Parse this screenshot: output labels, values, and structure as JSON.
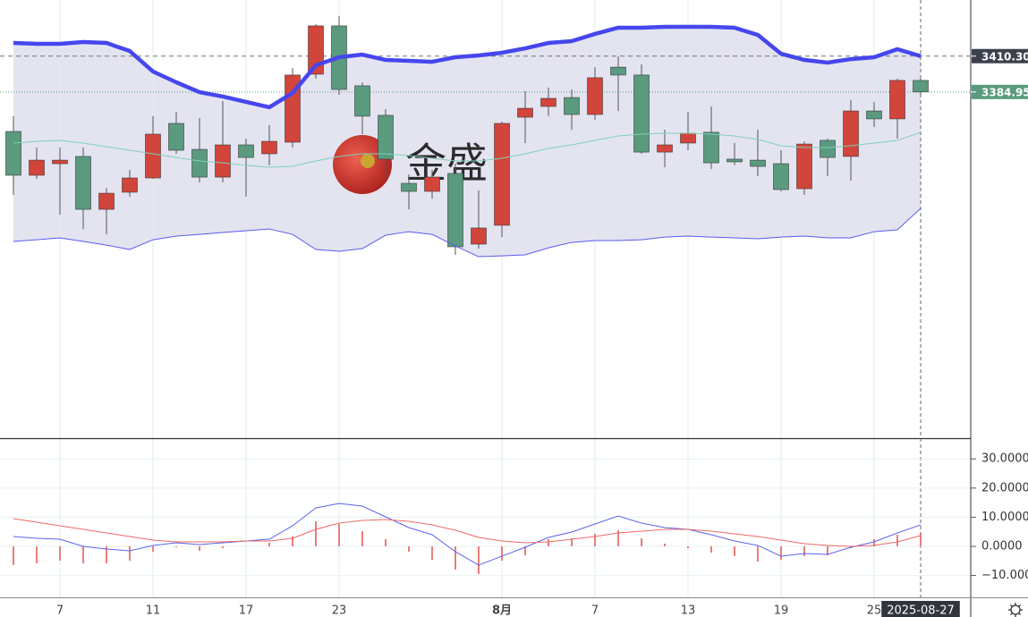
{
  "chart_data": [
    {
      "type": "candlestick",
      "categories": [
        null,
        null,
        "7",
        null,
        null,
        null,
        "11",
        null,
        null,
        null,
        "17",
        null,
        null,
        null,
        "23",
        null,
        null,
        null,
        null,
        null,
        null,
        "8月",
        null,
        null,
        null,
        "7",
        null,
        null,
        null,
        "13",
        null,
        null,
        null,
        "19",
        null,
        null,
        null,
        "25",
        null,
        "2025-08-27"
      ],
      "open": [
        3357.0,
        3326.0,
        3334.2,
        3339.3,
        3301.9,
        3314.0,
        3324.1,
        3362.7,
        3344.3,
        3324.7,
        3347.5,
        3341.2,
        3349.4,
        3397.5,
        3431.7,
        3389.3,
        3368.4,
        3320.3,
        3314.6,
        3327.3,
        3277.3,
        3290.6,
        3367.1,
        3374.7,
        3381.0,
        3369.0,
        3402.5,
        3396.9,
        3342.4,
        3348.8,
        3356.4,
        3337.4,
        3336.7,
        3334.2,
        3316.5,
        3350.7,
        3339.3,
        3371.5,
        3365.9,
        3393.1
      ],
      "high": [
        3367.8,
        3345.6,
        3345.6,
        3345.6,
        3317.1,
        3329.8,
        3367.8,
        3370.9,
        3366.5,
        3378.5,
        3351.9,
        3361.4,
        3401.9,
        3432.9,
        3438.6,
        3391.8,
        3372.8,
        3326.6,
        3329.8,
        3334.2,
        3315.2,
        3364.0,
        3385.5,
        3388.0,
        3386.7,
        3402.5,
        3410.1,
        3404.4,
        3358.3,
        3370.9,
        3374.7,
        3348.8,
        3358.3,
        3343.7,
        3350.0,
        3351.9,
        3379.1,
        3377.9,
        3394.3,
        3394.3
      ],
      "low": [
        3312.1,
        3323.5,
        3298.2,
        3288.0,
        3284.2,
        3310.8,
        3323.5,
        3341.2,
        3320.9,
        3320.9,
        3310.8,
        3333.0,
        3345.6,
        3394.3,
        3382.9,
        3355.1,
        3323.5,
        3301.9,
        3309.5,
        3269.7,
        3274.1,
        3282.3,
        3348.8,
        3367.8,
        3358.3,
        3365.2,
        3371.5,
        3341.2,
        3331.7,
        3343.7,
        3330.4,
        3333.0,
        3325.4,
        3314.6,
        3312.1,
        3325.4,
        3322.2,
        3360.2,
        3351.9,
        3383.5
      ],
      "close": [
        3326.0,
        3336.7,
        3336.7,
        3301.9,
        3313.3,
        3324.1,
        3355.1,
        3343.7,
        3324.7,
        3347.5,
        3338.6,
        3350.0,
        3396.9,
        3431.7,
        3386.7,
        3367.8,
        3337.4,
        3314.6,
        3324.7,
        3275.4,
        3288.7,
        3362.7,
        3373.4,
        3380.4,
        3369.0,
        3395.0,
        3396.9,
        3342.4,
        3347.5,
        3355.7,
        3334.8,
        3335.5,
        3332.3,
        3315.9,
        3348.1,
        3338.6,
        3371.5,
        3365.9,
        3393.1,
        3384.95
      ],
      "up_color": "#d2453b",
      "down_color": "#5a9a7f",
      "wick_color": "#555555",
      "overlays": [
        {
          "color": "#4646ee",
          "width": 4.5,
          "values": [
            3419.6,
            3419.0,
            3419.0,
            3420.3,
            3419.6,
            3413.9,
            3399.4,
            3391.8,
            3384.8,
            3381.7,
            3377.9,
            3374.1,
            3384.2,
            3403.8,
            3409.5,
            3411.4,
            3407.6,
            3407.0,
            3406.3,
            3409.5,
            3410.8,
            3412.7,
            3415.8,
            3419.6,
            3420.9,
            3426.0,
            3430.4,
            3430.4,
            3431.0,
            3431.0,
            3431.0,
            3430.4,
            3425.3,
            3412.0,
            3407.6,
            3405.7,
            3408.2,
            3409.5,
            3415.2,
            3410.3
          ]
        },
        {
          "color": "#7fd0b8",
          "width": 1,
          "values": [
            3348.8,
            3350.0,
            3350.7,
            3348.8,
            3346.2,
            3343.7,
            3341.2,
            3338.6,
            3336.1,
            3334.8,
            3333.0,
            3331.7,
            3332.3,
            3336.1,
            3339.3,
            3341.2,
            3341.2,
            3339.9,
            3338.0,
            3336.1,
            3336.1,
            3338.0,
            3341.2,
            3345.0,
            3347.5,
            3350.7,
            3353.8,
            3355.1,
            3355.7,
            3355.7,
            3355.1,
            3353.8,
            3351.3,
            3346.9,
            3345.6,
            3345.6,
            3346.9,
            3348.8,
            3350.7,
            3356.4
          ]
        },
        {
          "color": "#5a5aee",
          "width": 1,
          "values": [
            3279.2,
            3280.4,
            3281.7,
            3279.2,
            3276.6,
            3273.5,
            3280.4,
            3283.0,
            3284.2,
            3285.5,
            3286.8,
            3288.0,
            3284.2,
            3273.5,
            3272.2,
            3274.1,
            3283.6,
            3286.1,
            3284.2,
            3276.0,
            3268.4,
            3269.0,
            3269.7,
            3274.7,
            3278.5,
            3279.8,
            3279.8,
            3280.4,
            3282.3,
            3283.0,
            3282.3,
            3281.7,
            3281.1,
            3282.3,
            3283.0,
            3281.7,
            3281.7,
            3286.1,
            3287.4,
            3302.6
          ]
        }
      ],
      "band_fill": "#e4e4f1",
      "ylim": [
        3140,
        3450
      ],
      "price_tags": [
        {
          "value": 3410.3,
          "label": "3410.30"
        },
        3384.95
      ],
      "price_tag_colors": [
        "#3c424d",
        "#5a9a7f"
      ],
      "watermark": "金盛",
      "grid": true
    },
    {
      "type": "macd",
      "series": [
        {
          "color": "#5b63ee",
          "values": [
            3.37,
            2.76,
            2.45,
            0,
            -0.92,
            -1.53,
            0.31,
            1.23,
            0.61,
            1.23,
            1.84,
            2.45,
            7.06,
            13.19,
            14.72,
            13.8,
            10.12,
            6.44,
            3.99,
            -1.84,
            -6.44,
            -3.37,
            -0.31,
            3.07,
            4.91,
            7.67,
            10.43,
            7.98,
            6.44,
            5.83,
            3.99,
            1.84,
            0.31,
            -3.37,
            -2.45,
            -2.76,
            -0.31,
            1.53,
            4.6,
            7.36
          ]
        },
        {
          "color": "#ec6a66",
          "values": [
            9.51,
            8.28,
            7.06,
            5.83,
            4.6,
            3.37,
            2.15,
            1.53,
            1.53,
            1.53,
            1.84,
            1.84,
            2.76,
            5.83,
            7.98,
            8.9,
            9.2,
            8.59,
            7.36,
            5.52,
            3.07,
            1.84,
            1.23,
            1.53,
            2.45,
            3.37,
            4.6,
            5.21,
            5.83,
            5.83,
            5.21,
            4.29,
            3.37,
            2.15,
            0.92,
            0.31,
            0,
            0.31,
            1.53,
            3.68
          ]
        }
      ],
      "histogram": {
        "color": "#e2534c",
        "values": [
          -6.44,
          -5.83,
          -4.91,
          -5.83,
          -5.83,
          -4.91,
          -1.84,
          -0.31,
          -1.53,
          -0.61,
          0,
          1.23,
          3.37,
          8.59,
          7.67,
          5.21,
          2.45,
          -1.84,
          -4.6,
          -7.98,
          -9.51,
          -4.91,
          -3.07,
          2.45,
          2.76,
          4.29,
          5.52,
          2.76,
          0.92,
          -0.61,
          -2.15,
          -3.37,
          -5.21,
          -4.6,
          -3.37,
          -3.07,
          -0.61,
          2.45,
          3.99,
          4.6
        ]
      },
      "ylim": [
        -17.5,
        35.6
      ],
      "yticks": [
        {
          "value": 30,
          "label": "30.0000"
        },
        {
          "value": 20,
          "label": "20.0000"
        },
        {
          "value": 10,
          "label": "10.0000"
        },
        {
          "value": 0,
          "label": "0.0000"
        },
        {
          "value": -10,
          "label": "−10.000"
        }
      ],
      "grid": true
    }
  ]
}
